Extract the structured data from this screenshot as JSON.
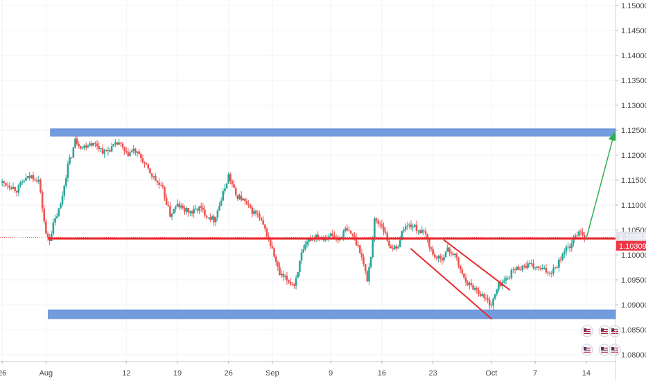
{
  "chart_data": {
    "type": "candlestick",
    "instrument": "",
    "y_axis": {
      "ticks": [
        "1.15000",
        "1.14500",
        "1.14000",
        "1.13500",
        "1.13000",
        "1.12500",
        "1.12000",
        "1.11500",
        "1.11000",
        "1.10500",
        "1.10000",
        "1.09500",
        "1.09000",
        "1.08500",
        "1.08000"
      ],
      "min": 1.08,
      "max": 1.15
    },
    "x_axis": {
      "ticks": [
        {
          "label": "26",
          "day": -6
        },
        {
          "label": "Aug",
          "day": 0
        },
        {
          "label": "12",
          "day": 11
        },
        {
          "label": "19",
          "day": 18
        },
        {
          "label": "26",
          "day": 25
        },
        {
          "label": "Sep",
          "day": 31
        },
        {
          "label": "9",
          "day": 39
        },
        {
          "label": "16",
          "day": 46
        },
        {
          "label": "23",
          "day": 53
        },
        {
          "label": "Oct",
          "day": 61
        },
        {
          "label": "7",
          "day": 67
        },
        {
          "label": "14",
          "day": 74
        }
      ],
      "range": [
        -6.3,
        78
      ]
    },
    "price_tags": [
      {
        "value": 1.10353,
        "label": "1.10353",
        "color": "#e0e3eb",
        "text_color": "#222222"
      },
      {
        "value": 1.10309,
        "label": "1.10309",
        "color": "#f23645",
        "text_color": "#ffffff"
      }
    ],
    "price_path": [
      [
        -6,
        1.1145
      ],
      [
        -5,
        1.114
      ],
      [
        -4,
        1.113
      ],
      [
        -3,
        1.115
      ],
      [
        -2,
        1.1158
      ],
      [
        -1,
        1.115
      ],
      [
        0,
        1.104
      ],
      [
        0.5,
        1.1032
      ],
      [
        1,
        1.106
      ],
      [
        2,
        1.11
      ],
      [
        3,
        1.118
      ],
      [
        3.5,
        1.12
      ],
      [
        4,
        1.123
      ],
      [
        5,
        1.1215
      ],
      [
        6,
        1.1225
      ],
      [
        7,
        1.122
      ],
      [
        8,
        1.1205
      ],
      [
        9,
        1.1215
      ],
      [
        10,
        1.1225
      ],
      [
        11,
        1.12
      ],
      [
        12,
        1.121
      ],
      [
        13,
        1.1195
      ],
      [
        14,
        1.117
      ],
      [
        15,
        1.115
      ],
      [
        16,
        1.113
      ],
      [
        17,
        1.108
      ],
      [
        18,
        1.11
      ],
      [
        19,
        1.109
      ],
      [
        20,
        1.1085
      ],
      [
        21,
        1.1095
      ],
      [
        22,
        1.108
      ],
      [
        23,
        1.107
      ],
      [
        24,
        1.111
      ],
      [
        25,
        1.116
      ],
      [
        26,
        1.112
      ],
      [
        27,
        1.111
      ],
      [
        28,
        1.109
      ],
      [
        29,
        1.108
      ],
      [
        30,
        1.105
      ],
      [
        31,
        1.101
      ],
      [
        32,
        1.096
      ],
      [
        33,
        1.095
      ],
      [
        34,
        1.094
      ],
      [
        35,
        1.1
      ],
      [
        36,
        1.103
      ],
      [
        37,
        1.104
      ],
      [
        38,
        1.1035
      ],
      [
        39,
        1.104
      ],
      [
        40,
        1.103
      ],
      [
        41,
        1.105
      ],
      [
        42,
        1.104
      ],
      [
        43,
        1.101
      ],
      [
        44,
        1.095
      ],
      [
        44.5,
        1.1
      ],
      [
        45,
        1.107
      ],
      [
        46,
        1.106
      ],
      [
        47,
        1.102
      ],
      [
        48,
        1.101
      ],
      [
        49,
        1.1055
      ],
      [
        50,
        1.106
      ],
      [
        51,
        1.105
      ],
      [
        52,
        1.104
      ],
      [
        53,
        1.1
      ],
      [
        54,
        1.099
      ],
      [
        55,
        1.101
      ],
      [
        56,
        1.1
      ],
      [
        57,
        1.096
      ],
      [
        58,
        1.094
      ],
      [
        59,
        1.093
      ],
      [
        60,
        1.0915
      ],
      [
        61,
        1.09
      ],
      [
        62,
        1.094
      ],
      [
        63,
        1.095
      ],
      [
        64,
        1.097
      ],
      [
        65,
        1.0975
      ],
      [
        66,
        1.098
      ],
      [
        67,
        1.0975
      ],
      [
        68,
        1.097
      ],
      [
        69,
        1.0965
      ],
      [
        70,
        1.098
      ],
      [
        71,
        1.101
      ],
      [
        72,
        1.102
      ],
      [
        73,
        1.105
      ],
      [
        74,
        1.1035
      ]
    ],
    "zones": [
      {
        "name": "resistance-zone",
        "x0": 0.6,
        "x1": 78,
        "y_top": 1.1253,
        "y_bottom": 1.1238,
        "color": "#5b8bd9"
      },
      {
        "name": "support-zone",
        "x0": 0.3,
        "x1": 78,
        "y_top": 1.089,
        "y_bottom": 1.0872,
        "color": "#5b8bd9"
      }
    ],
    "lines": [
      {
        "name": "support-resistance-line",
        "x0": 0.4,
        "y0": 1.1033,
        "x1": 78,
        "y1": 1.1033,
        "color": "#e8282b",
        "width": 3
      },
      {
        "name": "channel-lower-line",
        "x0": 50,
        "y0": 1.1012,
        "x1": 61,
        "y1": 1.0872,
        "color": "#e8282b",
        "width": 2
      },
      {
        "name": "channel-upper-line",
        "x0": 54.5,
        "y0": 1.103,
        "x1": 63.5,
        "y1": 1.093,
        "color": "#e8282b",
        "width": 2
      },
      {
        "name": "projection-arrow",
        "x0": 74,
        "y0": 1.1033,
        "x1": 77.8,
        "y1": 1.1242,
        "color": "#2bb24c",
        "width": 1.5,
        "arrow": true
      }
    ],
    "event_icon_count": 6
  }
}
